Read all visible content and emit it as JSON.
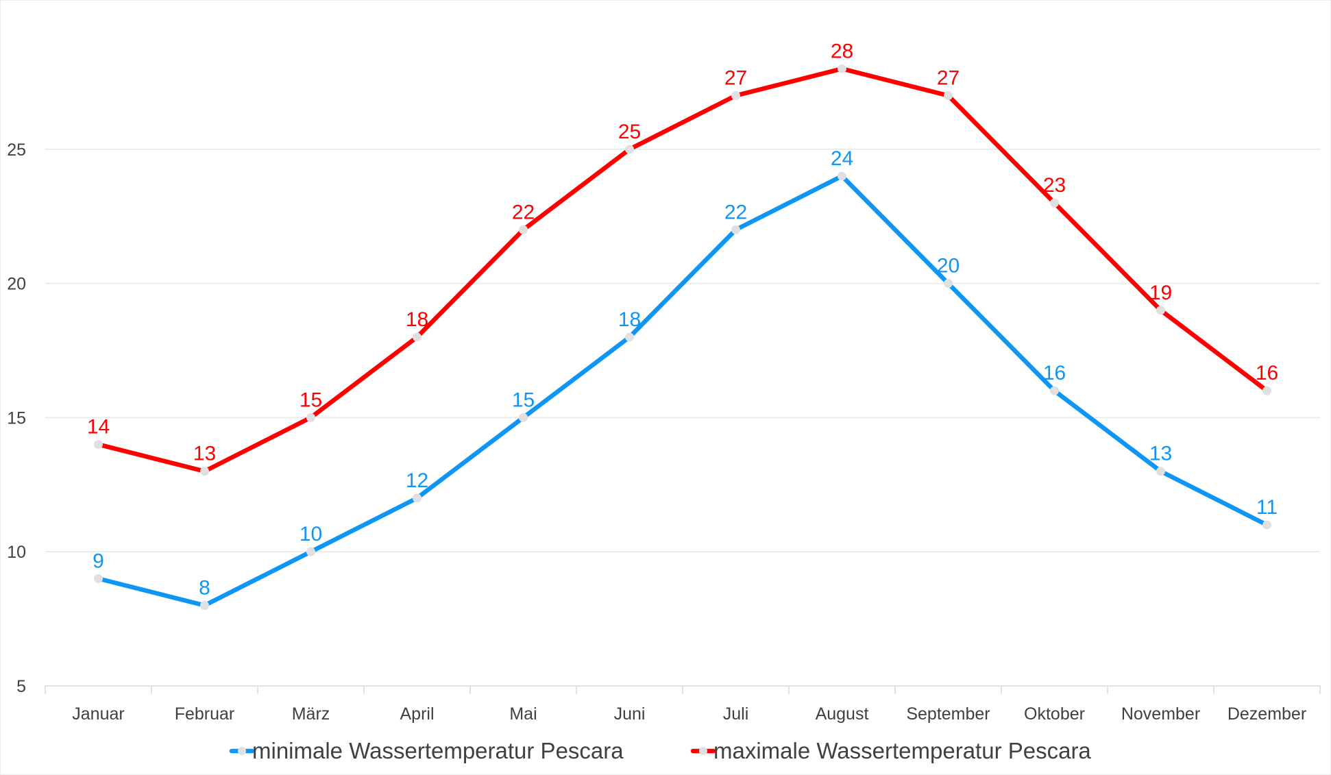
{
  "chart_data": {
    "type": "line",
    "categories": [
      "Januar",
      "Februar",
      "März",
      "April",
      "Mai",
      "Juni",
      "Juli",
      "August",
      "September",
      "Oktober",
      "November",
      "Dezember"
    ],
    "series": [
      {
        "name": "minimale Wassertemperatur Pescara",
        "color": "#0f96f5",
        "values": [
          9,
          8,
          10,
          12,
          15,
          18,
          22,
          24,
          20,
          16,
          13,
          11
        ]
      },
      {
        "name": "maximale Wassertemperatur Pescara",
        "color": "#ff0000",
        "values": [
          14,
          13,
          15,
          18,
          22,
          25,
          27,
          28,
          27,
          23,
          19,
          16
        ]
      }
    ],
    "ylim": [
      5,
      30
    ],
    "yticks": [
      5,
      10,
      15,
      20,
      25
    ],
    "grid": true,
    "legend": "bottom",
    "marker_color": "#e0e0e0",
    "axis_color": "#d9d9d9"
  }
}
